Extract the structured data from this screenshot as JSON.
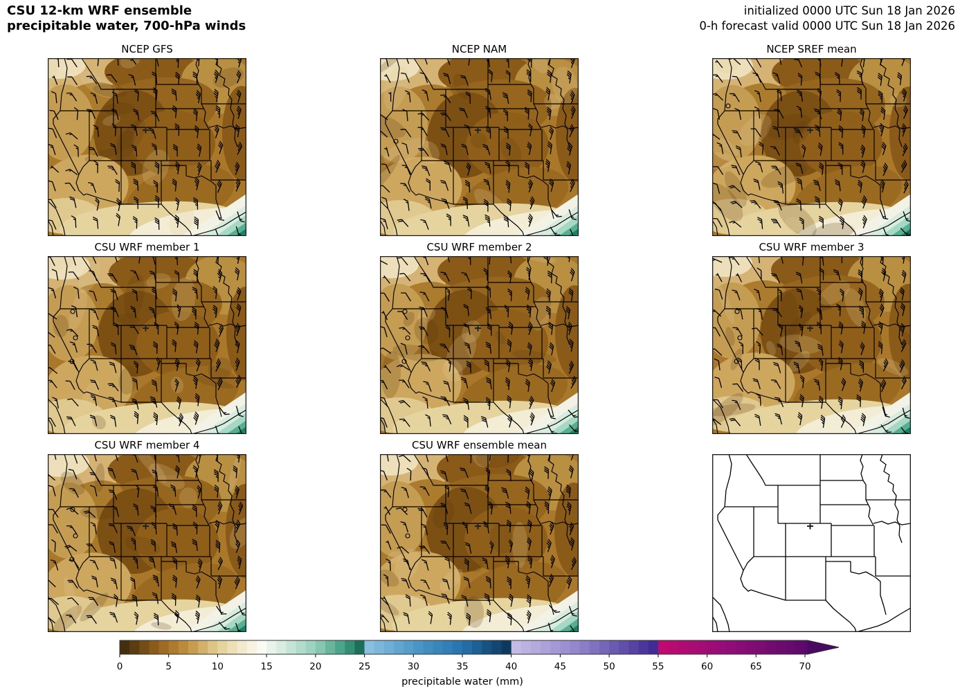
{
  "header": {
    "title_line1": "CSU 12-km WRF ensemble",
    "title_line2": "precipitable water, 700-hPa winds",
    "init_line1": "initialized 0000 UTC Sun 18 Jan 2026",
    "init_line2": "0-h forecast valid 0000 UTC Sun 18 Jan 2026"
  },
  "panels": [
    {
      "title": "NCEP GFS",
      "type": "filled"
    },
    {
      "title": "NCEP NAM",
      "type": "filled"
    },
    {
      "title": "NCEP SREF mean",
      "type": "filled"
    },
    {
      "title": "CSU WRF member 1",
      "type": "filled"
    },
    {
      "title": "CSU WRF member 2",
      "type": "filled"
    },
    {
      "title": "CSU WRF member 3",
      "type": "filled"
    },
    {
      "title": "CSU WRF member 4",
      "type": "filled"
    },
    {
      "title": "CSU WRF ensemble mean",
      "type": "filled"
    },
    {
      "title": "",
      "type": "blank"
    }
  ],
  "colorbar": {
    "label": "precipitable water (mm)",
    "ticks": [
      0,
      5,
      10,
      15,
      20,
      25,
      30,
      35,
      40,
      45,
      50,
      55,
      60,
      65,
      70
    ],
    "range": [
      0,
      70
    ],
    "extend": "max",
    "level_step_mm": 1,
    "stops": [
      {
        "v": 0,
        "c": "#3a260b"
      },
      {
        "v": 4,
        "c": "#95631c"
      },
      {
        "v": 7,
        "c": "#c39343"
      },
      {
        "v": 10,
        "c": "#e3cf92"
      },
      {
        "v": 13,
        "c": "#f6eed9"
      },
      {
        "v": 14.5,
        "c": "#f9faf3"
      },
      {
        "v": 16,
        "c": "#e2f0e6"
      },
      {
        "v": 20,
        "c": "#93cfba"
      },
      {
        "v": 23,
        "c": "#3e9d80"
      },
      {
        "v": 24.99,
        "c": "#14604e"
      },
      {
        "v": 25,
        "c": "#8fc3e1"
      },
      {
        "v": 30,
        "c": "#4e99c8"
      },
      {
        "v": 35,
        "c": "#2672ae"
      },
      {
        "v": 39.99,
        "c": "#0b3356"
      },
      {
        "v": 40,
        "c": "#c8bfe6"
      },
      {
        "v": 47,
        "c": "#9183cb"
      },
      {
        "v": 54.99,
        "c": "#3b2690"
      },
      {
        "v": 55,
        "c": "#c20a70"
      },
      {
        "v": 62,
        "c": "#930d78"
      },
      {
        "v": 69.99,
        "c": "#5a0a6b"
      },
      {
        "v": 72.5,
        "c": "#470a5e"
      }
    ]
  },
  "map_style": {
    "state_border_color": "#000000",
    "wind_barb_color": "#000000",
    "location_marker_glyph": "+",
    "base_fill": "#a9782b"
  },
  "chart_data": {
    "type": "heatmap",
    "title": "CSU 12-km WRF ensemble precipitable water, 700-hPa winds",
    "initialized": "0000 UTC Sun 18 Jan 2026",
    "valid": "0-h forecast valid 0000 UTC Sun 18 Jan 2026",
    "panel_titles": [
      "NCEP GFS",
      "NCEP NAM",
      "NCEP SREF mean",
      "CSU WRF member 1",
      "CSU WRF member 2",
      "CSU WRF member 3",
      "CSU WRF member 4",
      "CSU WRF ensemble mean"
    ],
    "field": "precipitable water (mm)",
    "overlay": "700-hPa wind barbs",
    "colorbar_ticks": [
      0,
      5,
      10,
      15,
      20,
      25,
      30,
      35,
      40,
      45,
      50,
      55,
      60,
      65,
      70
    ],
    "visible_value_range_mm": [
      0,
      30
    ],
    "pattern_notes": "mostly 2-8 mm browns over interior West and plains; 10-15 mm cream band near Rio Grande; 15-30 mm teal/blue maximum at Gulf coast (SE corner)"
  }
}
